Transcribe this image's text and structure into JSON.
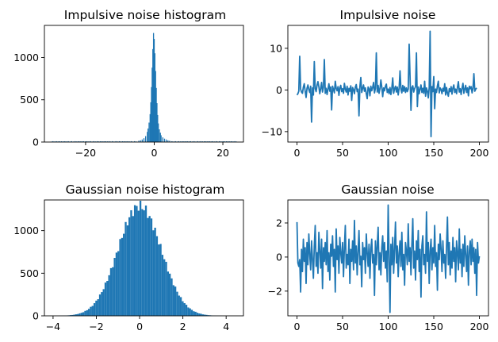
{
  "chart_data": [
    {
      "type": "bar",
      "title": "Impulsive noise histogram",
      "xlabel": "",
      "ylabel": "",
      "xlim": [
        -32,
        26
      ],
      "ylim": [
        0,
        1380
      ],
      "xticks": [
        -20,
        0,
        20
      ],
      "yticks": [
        0,
        500,
        1000
      ],
      "bin_width": 0.3,
      "bin_centers": [
        -4.5,
        -4.0,
        -3.5,
        -3.0,
        -2.5,
        -2.0,
        -1.8,
        -1.5,
        -1.2,
        -1.0,
        -0.8,
        -0.6,
        -0.4,
        -0.2,
        0.0,
        0.2,
        0.4,
        0.6,
        0.8,
        1.0,
        1.2,
        1.5,
        1.8,
        2.0,
        2.5,
        3.0,
        3.5,
        4.0,
        4.5
      ],
      "values": [
        15,
        20,
        30,
        45,
        70,
        120,
        160,
        230,
        330,
        470,
        650,
        880,
        1100,
        1290,
        1220,
        1050,
        840,
        640,
        460,
        320,
        220,
        150,
        110,
        80,
        55,
        40,
        30,
        20,
        15
      ],
      "tails": {
        "range": [
          -30,
          24
        ],
        "approx_count": 10
      }
    },
    {
      "type": "line",
      "title": "Impulsive noise",
      "xlabel": "",
      "ylabel": "",
      "xlim": [
        -10,
        210
      ],
      "ylim": [
        -12.5,
        15.5
      ],
      "xticks": [
        0,
        50,
        100,
        150,
        200
      ],
      "yticks": [
        -10,
        0,
        10
      ],
      "x_start": 0,
      "y": [
        -1.2,
        -0.9,
        -0.3,
        8.1,
        0.2,
        -0.5,
        -0.8,
        0.7,
        1.5,
        -0.3,
        -1.8,
        0.4,
        1.2,
        0.1,
        -0.6,
        0.9,
        -7.7,
        0.5,
        -1.2,
        6.8,
        0.3,
        -0.4,
        1.1,
        2.0,
        0.8,
        -0.9,
        0.3,
        1.8,
        -0.5,
        0.6,
        7.3,
        -0.8,
        0.4,
        -1.1,
        0.2,
        1.5,
        -0.3,
        0.7,
        -4.8,
        0.9,
        0.1,
        -0.7,
        2.1,
        0.4,
        -0.2,
        0.8,
        -1.3,
        0.5,
        1.1,
        -0.4,
        0.3,
        -0.8,
        1.6,
        0.2,
        -0.5,
        0.9,
        -1.2,
        0.4,
        -0.3,
        1.0,
        -2.5,
        0.6,
        0.1,
        -0.9,
        0.7,
        1.3,
        -0.4,
        0.2,
        -6.2,
        0.8,
        3.0,
        -0.6,
        0.4,
        1.2,
        -0.3,
        0.5,
        -0.9,
        -2.1,
        0.7,
        0.3,
        -1.4,
        0.9,
        -0.2,
        0.6,
        1.8,
        -0.7,
        0.4,
        8.9,
        -0.5,
        1.1,
        -0.8,
        0.3,
        2.4,
        0.7,
        -1.6,
        0.5,
        -0.2,
        0.9,
        1.4,
        -0.6,
        0.2,
        -0.9,
        0.6,
        -1.1,
        0.4,
        2.9,
        -0.8,
        0.3,
        0.9,
        -0.5,
        0.7,
        -1.2,
        0.4,
        4.6,
        0.2,
        -0.7,
        1.1,
        -0.3,
        0.8,
        -0.6,
        0.5,
        -0.4,
        0.2,
        11.0,
        3.1,
        -4.9,
        0.6,
        1.0,
        -0.5,
        0.3,
        0.8,
        8.9,
        -4.0,
        0.7,
        -0.9,
        0.2,
        1.2,
        -0.6,
        0.4,
        -0.8,
        2.1,
        -1.5,
        0.5,
        -0.3,
        -1.9,
        0.6,
        14.1,
        -11.2,
        0.8,
        -0.4,
        3.2,
        -4.5,
        0.2,
        -0.6,
        1.0,
        2.1,
        -0.7,
        0.5,
        0.1,
        -0.9,
        0.4,
        -0.3,
        1.5,
        -1.2,
        0.6,
        -0.8,
        -1.5,
        0.3,
        -0.4,
        0.8,
        -1.0,
        0.5,
        1.2,
        -0.6,
        0.2,
        -0.9,
        0.7,
        2.0,
        -0.5,
        0.3,
        -1.1,
        0.4,
        1.6,
        -0.8,
        0.2,
        1.1,
        -0.6,
        0.5,
        -1.4,
        0.9,
        0.3,
        0.8,
        -0.7,
        0.4,
        3.9,
        -0.3,
        0.2,
        0.5
      ]
    },
    {
      "type": "bar",
      "title": "Gaussian noise histogram",
      "xlabel": "",
      "ylabel": "",
      "xlim": [
        -4.4,
        4.8
      ],
      "ylim": [
        0,
        1360
      ],
      "xticks": [
        -4,
        -2,
        0,
        2,
        4
      ],
      "yticks": [
        0,
        500,
        1000
      ],
      "gaussian": {
        "mean": 0.0,
        "std": 1.0
      },
      "bin_range": [
        -4.0,
        4.5
      ],
      "bin_count": 100,
      "peak": 1290
    },
    {
      "type": "line",
      "title": "Gaussian noise",
      "xlabel": "",
      "ylabel": "",
      "xlim": [
        -10,
        210
      ],
      "ylim": [
        -3.45,
        3.35
      ],
      "xticks": [
        0,
        50,
        100,
        150,
        200
      ],
      "yticks": [
        -2,
        0,
        2
      ],
      "x_start": 0,
      "y": [
        2.05,
        -0.35,
        -0.55,
        -0.15,
        -2.05,
        0.45,
        -0.85,
        1.05,
        -0.25,
        0.55,
        -1.55,
        0.85,
        -0.45,
        1.35,
        0.15,
        -0.75,
        0.95,
        -0.15,
        -1.25,
        0.65,
        1.85,
        -0.55,
        0.25,
        -0.95,
        1.45,
        0.35,
        -0.65,
        1.05,
        -1.85,
        0.55,
        -0.25,
        0.85,
        -0.45,
        1.55,
        -0.85,
        0.25,
        -1.35,
        0.75,
        0.05,
        1.25,
        -0.55,
        0.45,
        -2.05,
        1.65,
        -0.15,
        0.65,
        -0.95,
        1.15,
        0.25,
        -0.35,
        0.85,
        -1.15,
        0.55,
        1.85,
        -0.65,
        0.15,
        -0.45,
        1.05,
        -1.55,
        0.45,
        -0.25,
        0.95,
        -0.75,
        2.15,
        -0.35,
        0.65,
        -1.05,
        0.35,
        1.55,
        -0.45,
        0.05,
        -1.75,
        0.85,
        -0.15,
        0.55,
        -0.95,
        1.35,
        0.25,
        -0.55,
        0.75,
        -1.25,
        0.45,
        1.05,
        -0.35,
        0.15,
        -2.25,
        0.95,
        -0.45,
        0.65,
        1.75,
        -0.75,
        0.25,
        -1.05,
        0.55,
        1.25,
        -0.25,
        0.85,
        -0.65,
        0.35,
        -1.45,
        3.05,
        0.15,
        -3.25,
        0.75,
        -0.45,
        1.15,
        -0.95,
        0.45,
        2.05,
        -0.35,
        0.65,
        -1.15,
        0.25,
        0.95,
        -0.55,
        1.45,
        -0.75,
        0.15,
        -1.65,
        0.85,
        0.35,
        -0.45,
        1.95,
        -0.25,
        0.55,
        -1.05,
        0.75,
        2.25,
        -0.65,
        0.35,
        -1.35,
        0.95,
        -0.15,
        1.55,
        -0.85,
        0.45,
        -2.35,
        0.65,
        1.25,
        -0.45,
        0.15,
        -0.95,
        2.65,
        -0.25,
        0.85,
        -1.55,
        0.35,
        1.05,
        -0.75,
        0.55,
        -0.35,
        1.85,
        -0.55,
        0.25,
        -1.95,
        0.75,
        -0.15,
        1.35,
        0.45,
        -0.85,
        0.95,
        -0.35,
        0.15,
        -1.25,
        0.65,
        2.35,
        -0.45,
        0.85,
        -1.05,
        0.35,
        -0.65,
        1.15,
        -0.25,
        0.55,
        -1.45,
        0.95,
        0.25,
        -0.75,
        1.65,
        -0.35,
        0.45,
        -1.15,
        0.75,
        -0.55,
        1.25,
        0.15,
        -0.85,
        0.65,
        -1.65,
        0.35,
        0.95,
        -0.45,
        1.05,
        -0.25,
        0.55,
        -0.95,
        0.45,
        -2.25,
        0.85,
        -0.35,
        0.05
      ]
    }
  ]
}
